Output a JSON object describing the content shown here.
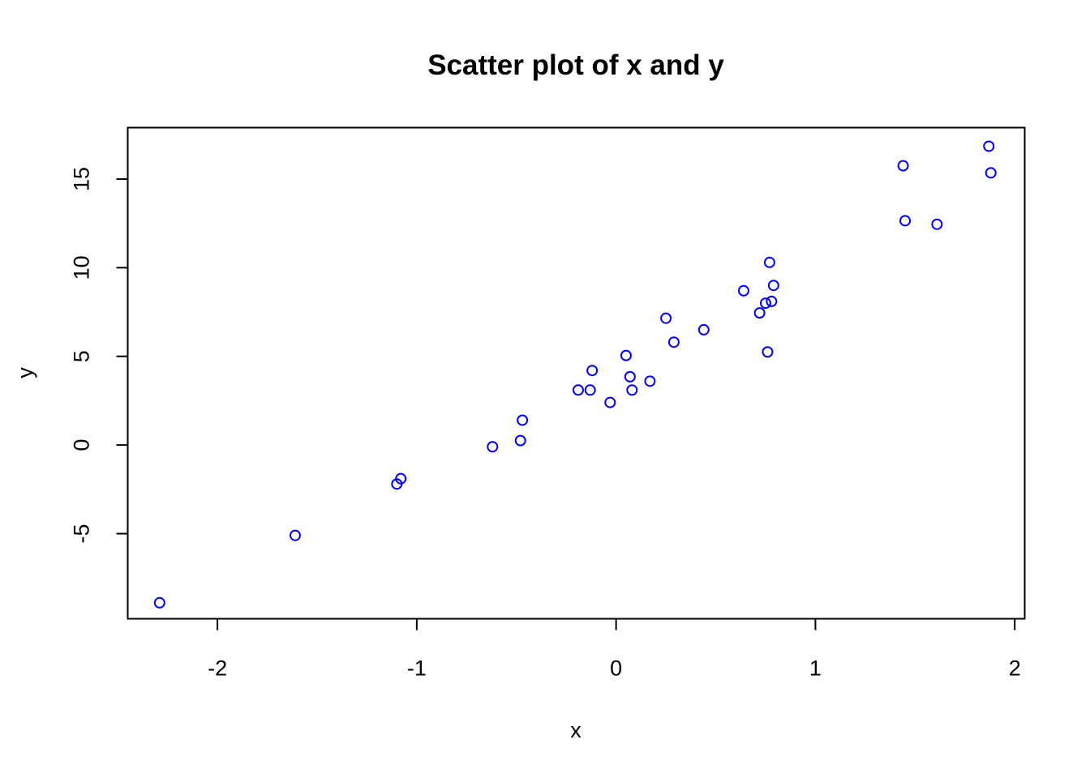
{
  "chart_data": {
    "type": "scatter",
    "title": "Scatter plot of x and y",
    "xlabel": "x",
    "ylabel": "y",
    "xlim": [
      -2.45,
      2.05
    ],
    "ylim": [
      -9.8,
      17.9
    ],
    "xticks": [
      -2,
      -1,
      0,
      1,
      2
    ],
    "yticks": [
      -5,
      0,
      5,
      10,
      15
    ],
    "xtick_labels": [
      "-2",
      "-1",
      "0",
      "1",
      "2"
    ],
    "ytick_labels": [
      "-5",
      "0",
      "5",
      "10",
      "15"
    ],
    "grid": false,
    "legend": "none",
    "marker": "open-circle",
    "point_color": "#0000ff",
    "axis_color": "#000000",
    "points": [
      {
        "x": -2.29,
        "y": -8.9
      },
      {
        "x": -1.61,
        "y": -5.1
      },
      {
        "x": -1.1,
        "y": -2.2
      },
      {
        "x": -1.08,
        "y": -1.9
      },
      {
        "x": -0.62,
        "y": -0.1
      },
      {
        "x": -0.48,
        "y": 0.25
      },
      {
        "x": -0.47,
        "y": 1.4
      },
      {
        "x": -0.19,
        "y": 3.1
      },
      {
        "x": -0.13,
        "y": 3.1
      },
      {
        "x": -0.12,
        "y": 4.2
      },
      {
        "x": -0.03,
        "y": 2.4
      },
      {
        "x": 0.05,
        "y": 5.05
      },
      {
        "x": 0.07,
        "y": 3.85
      },
      {
        "x": 0.08,
        "y": 3.1
      },
      {
        "x": 0.17,
        "y": 3.6
      },
      {
        "x": 0.25,
        "y": 7.15
      },
      {
        "x": 0.29,
        "y": 5.8
      },
      {
        "x": 0.44,
        "y": 6.5
      },
      {
        "x": 0.64,
        "y": 8.7
      },
      {
        "x": 0.72,
        "y": 7.45
      },
      {
        "x": 0.75,
        "y": 8.0
      },
      {
        "x": 0.76,
        "y": 5.25
      },
      {
        "x": 0.77,
        "y": 10.3
      },
      {
        "x": 0.78,
        "y": 8.1
      },
      {
        "x": 0.79,
        "y": 9.0
      },
      {
        "x": 1.44,
        "y": 15.75
      },
      {
        "x": 1.45,
        "y": 12.65
      },
      {
        "x": 1.61,
        "y": 12.45
      },
      {
        "x": 1.87,
        "y": 16.85
      },
      {
        "x": 1.88,
        "y": 15.35
      }
    ]
  }
}
